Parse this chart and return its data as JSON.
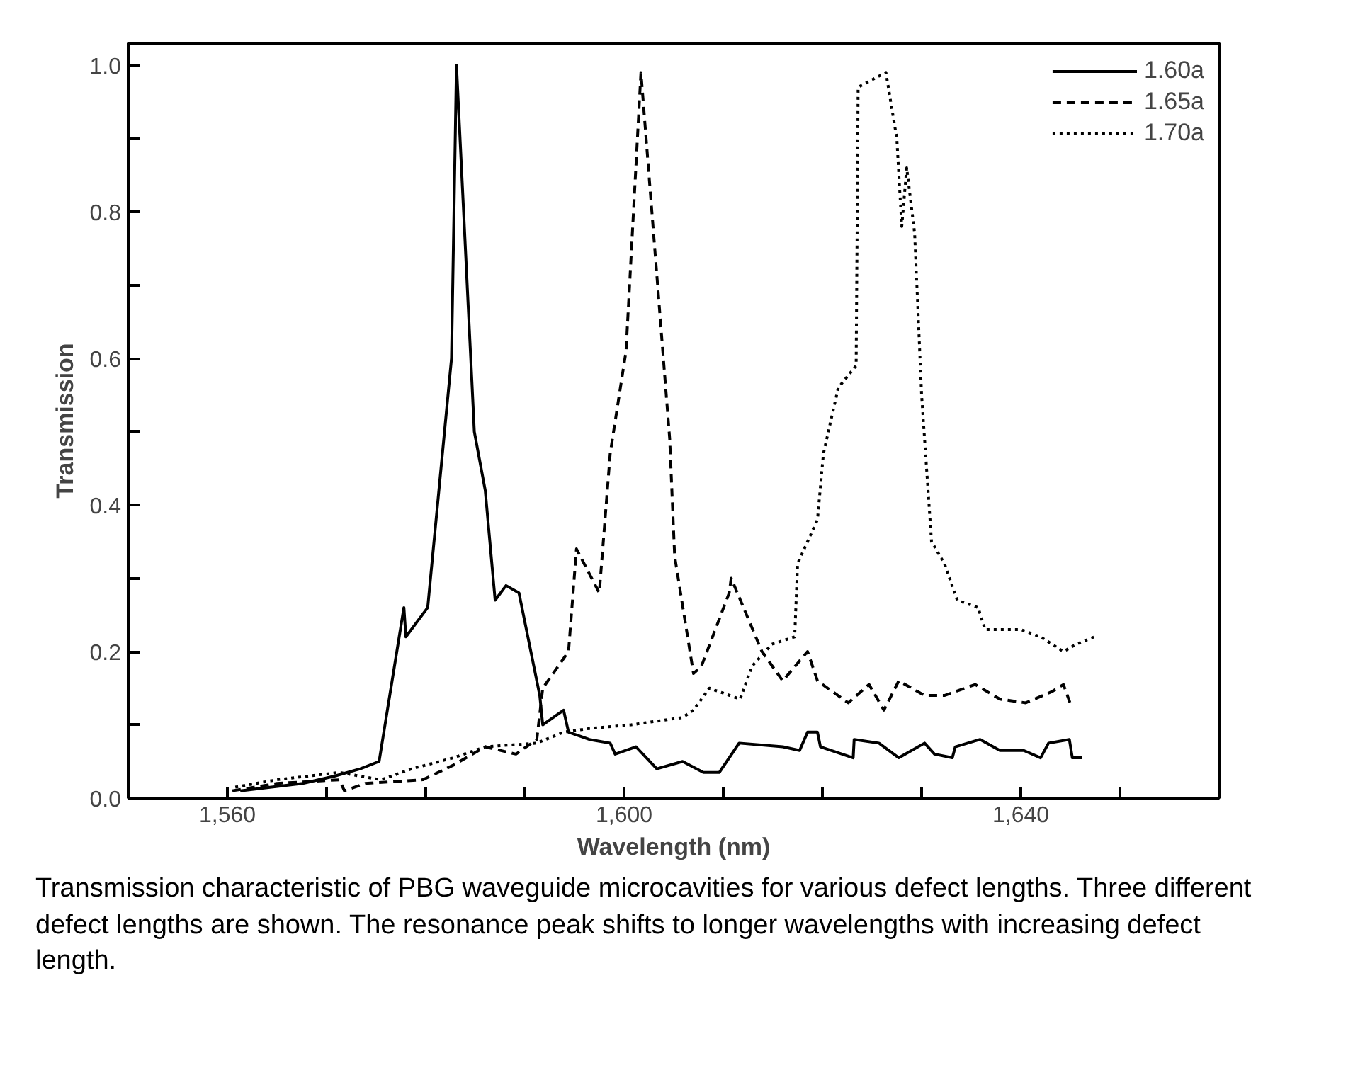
{
  "chart_data": {
    "type": "line",
    "xlabel": "Wavelength (nm)",
    "ylabel": "Transmission",
    "xlim": [
      1550,
      1660
    ],
    "ylim": [
      0,
      1.03
    ],
    "xticks": [
      {
        "value": 1560,
        "label": "1,560"
      },
      {
        "value": 1570,
        "label": null
      },
      {
        "value": 1580,
        "label": null
      },
      {
        "value": 1590,
        "label": null
      },
      {
        "value": 1600,
        "label": "1,600"
      },
      {
        "value": 1610,
        "label": null
      },
      {
        "value": 1620,
        "label": null
      },
      {
        "value": 1630,
        "label": null
      },
      {
        "value": 1640,
        "label": "1,640"
      },
      {
        "value": 1650,
        "label": null
      }
    ],
    "yticks": [
      {
        "value": 0,
        "label": "0.0"
      },
      {
        "value": 0.1,
        "label": null
      },
      {
        "value": 0.2,
        "label": "0.2"
      },
      {
        "value": 0.3,
        "label": null
      },
      {
        "value": 0.4,
        "label": "0.4"
      },
      {
        "value": 0.5,
        "label": null
      },
      {
        "value": 0.6,
        "label": "0.6"
      },
      {
        "value": 0.7,
        "label": null
      },
      {
        "value": 0.8,
        "label": "0.8"
      },
      {
        "value": 0.9,
        "label": null
      },
      {
        "value": 1.0,
        "label": "1.0"
      }
    ],
    "grid": false,
    "legend": "top right",
    "marker": "none",
    "series": [
      {
        "name": "1.60a",
        "color": "#000000",
        "line_style": "solid",
        "x": [
          1561.3,
          1567.6,
          1570.8,
          1573.4,
          1575.3,
          1577.8,
          1578.0,
          1580.2,
          1582.6,
          1583.1,
          1584.9,
          1586.0,
          1587.0,
          1588.1,
          1589.4,
          1591.5,
          1591.8,
          1593.9,
          1594.4,
          1596.5,
          1598.6,
          1599.1,
          1601.2,
          1603.3,
          1605.9,
          1608.0,
          1609.6,
          1611.6,
          1616.0,
          1617.7,
          1618.5,
          1619.5,
          1619.8,
          1623.1,
          1623.2,
          1625.7,
          1627.7,
          1630.3,
          1631.3,
          1633.1,
          1633.4,
          1635.9,
          1637.9,
          1640.3,
          1642.0,
          1642.8,
          1644.9,
          1645.2,
          1646.2
        ],
        "values": [
          0.01,
          0.02,
          0.03,
          0.04,
          0.05,
          0.26,
          0.22,
          0.26,
          0.6,
          1.0,
          0.5,
          0.42,
          0.27,
          0.29,
          0.28,
          0.14,
          0.1,
          0.12,
          0.09,
          0.08,
          0.075,
          0.06,
          0.07,
          0.04,
          0.05,
          0.035,
          0.035,
          0.075,
          0.07,
          0.065,
          0.09,
          0.09,
          0.07,
          0.055,
          0.08,
          0.075,
          0.055,
          0.075,
          0.06,
          0.055,
          0.07,
          0.08,
          0.065,
          0.065,
          0.055,
          0.075,
          0.08,
          0.055,
          0.055
        ]
      },
      {
        "name": "1.65a",
        "color": "#000000",
        "line_style": "dashed",
        "x": [
          1560.5,
          1565.0,
          1571.3,
          1571.8,
          1573.9,
          1579.7,
          1582.8,
          1586.0,
          1589.1,
          1591.2,
          1591.8,
          1594.4,
          1595.2,
          1597.5,
          1598.6,
          1600.2,
          1601.7,
          1604.6,
          1605.1,
          1607.0,
          1607.8,
          1610.6,
          1610.8,
          1613.9,
          1616.0,
          1618.5,
          1619.5,
          1622.6,
          1624.7,
          1626.2,
          1627.7,
          1630.3,
          1632.3,
          1635.4,
          1637.9,
          1640.5,
          1643.1,
          1644.3,
          1645.1
        ],
        "values": [
          0.01,
          0.02,
          0.025,
          0.01,
          0.02,
          0.025,
          0.045,
          0.07,
          0.06,
          0.08,
          0.15,
          0.2,
          0.34,
          0.28,
          0.47,
          0.61,
          0.99,
          0.49,
          0.33,
          0.17,
          0.18,
          0.28,
          0.3,
          0.2,
          0.16,
          0.2,
          0.16,
          0.13,
          0.155,
          0.12,
          0.16,
          0.14,
          0.14,
          0.155,
          0.135,
          0.13,
          0.145,
          0.155,
          0.125
        ]
      },
      {
        "name": "1.70a",
        "color": "#000000",
        "line_style": "dotted",
        "x": [
          1560.8,
          1565.0,
          1571.3,
          1575.5,
          1578.6,
          1582.8,
          1586.0,
          1591.2,
          1593.9,
          1596.5,
          1600.7,
          1605.9,
          1607.0,
          1608.6,
          1611.7,
          1612.9,
          1614.9,
          1617.2,
          1617.5,
          1619.5,
          1620.1,
          1621.6,
          1623.4,
          1623.6,
          1626.4,
          1627.5,
          1628.0,
          1628.5,
          1629.3,
          1630.0,
          1631.0,
          1632.3,
          1633.6,
          1635.7,
          1636.4,
          1640.0,
          1642.0,
          1644.3,
          1645.6,
          1647.4
        ],
        "values": [
          0.015,
          0.025,
          0.035,
          0.025,
          0.04,
          0.055,
          0.07,
          0.075,
          0.09,
          0.095,
          0.1,
          0.11,
          0.12,
          0.15,
          0.135,
          0.18,
          0.21,
          0.22,
          0.32,
          0.38,
          0.47,
          0.56,
          0.59,
          0.97,
          0.99,
          0.9,
          0.78,
          0.86,
          0.77,
          0.55,
          0.35,
          0.32,
          0.27,
          0.26,
          0.23,
          0.23,
          0.22,
          0.2,
          0.21,
          0.22
        ]
      }
    ],
    "annotations": [
      "Transmission characteristic of PBG waveguide microcavities for various defect lengths. Three different defect lengths are shown. The resonance peak shifts to longer wavelengths with increasing defect length."
    ]
  }
}
